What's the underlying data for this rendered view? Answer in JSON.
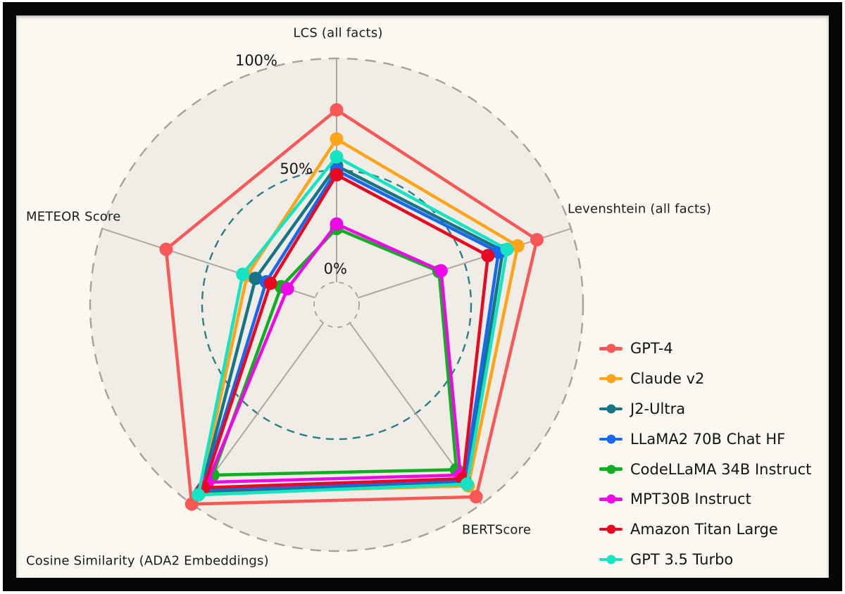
{
  "chart_data": {
    "type": "radar",
    "axes": [
      "LCS (all facts)",
      "Levenshtein (all facts)",
      "BERTScore",
      "Cosine Similarity (ADA2 Embeddings)",
      "METEOR Score"
    ],
    "radial_ticks": [
      "0%",
      "50%",
      "100%"
    ],
    "radial_range": [
      0,
      100
    ],
    "units": "percent",
    "legend_position": "right",
    "grid": {
      "outer_circle": "dashed gray (100%)",
      "mid_circle": "dashed teal (50%)",
      "inner_circle": "dashed gray (0% hole)",
      "spoke_color": "#ada9a2",
      "mid_circle_color": "#2c7d8c",
      "outer_circle_color": "#a5a29b",
      "disc_fill": "#f0ede6",
      "background": "#faf8f1"
    },
    "series": [
      {
        "name": "GPT-4",
        "color": "#fa5757",
        "values": [
          77,
          84,
          96,
          100,
          70
        ]
      },
      {
        "name": "Claude v2",
        "color": "#ffa318",
        "values": [
          64,
          75,
          90,
          94,
          32
        ]
      },
      {
        "name": "J2-Ultra",
        "color": "#157585",
        "values": [
          52,
          68,
          88,
          93,
          28
        ]
      },
      {
        "name": "LLaMA2 70B Chat HF",
        "color": "#1668f0",
        "values": [
          50,
          66,
          87,
          92,
          23
        ]
      },
      {
        "name": "CodeLLaMA 34B Instruct",
        "color": "#10ae21",
        "values": [
          24,
          38,
          81,
          84,
          16
        ]
      },
      {
        "name": "MPT30B Instruct",
        "color": "#ee08e8",
        "values": [
          26,
          39,
          84,
          88,
          13
        ]
      },
      {
        "name": "Amazon Titan Large",
        "color": "#e80822",
        "values": [
          48,
          61,
          86,
          91,
          21
        ]
      },
      {
        "name": "GPT 3.5 Turbo",
        "color": "#14e3c4",
        "values": [
          56,
          70,
          89,
          95,
          34
        ]
      }
    ]
  }
}
